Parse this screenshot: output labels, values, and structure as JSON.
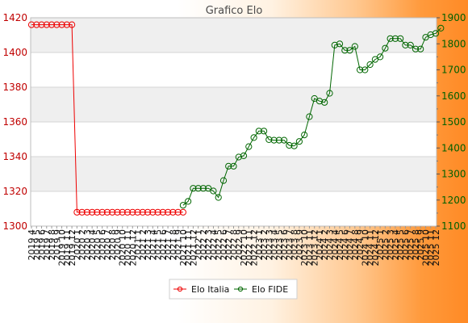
{
  "chart_data": {
    "type": "line",
    "title": "Grafico Elo",
    "legend_position": "bottom",
    "grid": true,
    "x_labels": [
      "2019 4",
      "2019 5",
      "2019 6",
      "2019 7",
      "2019 8",
      "2019 9",
      "2019 10",
      "2019 11",
      "2019 12",
      "2020 1",
      "2020 2",
      "2020 3",
      "2020 4",
      "2020 5",
      "2020 6",
      "2020 7",
      "2020 8",
      "2020 9",
      "2020 10",
      "2020 11",
      "2020 12",
      "2021 1",
      "2021 2",
      "2021 3",
      "2021 4",
      "2021 5",
      "2021 6",
      "2021 7",
      "2021 8",
      "2021 9",
      "2021 10",
      "2021 11",
      "2021 12",
      "2022 1",
      "2022 2",
      "2022 3",
      "2022 4",
      "2022 5",
      "2022 6",
      "2022 7",
      "2022 8",
      "2022 9",
      "2022 10",
      "2022 11",
      "2022 12",
      "2023 1",
      "2023 2",
      "2023 3",
      "2023 4",
      "2023 5",
      "2023 6",
      "2023 7",
      "2023 8",
      "2023 9",
      "2023 10",
      "2023 11",
      "2023 12",
      "2024 1",
      "2024 2",
      "2024 3",
      "2024 4",
      "2024 5",
      "2024 6",
      "2024 7",
      "2024 8",
      "2024 9",
      "2024 10",
      "2024 11",
      "2024 12",
      "2025 1",
      "2025 2",
      "2025 3",
      "2025 4",
      "2025 5",
      "2025 6",
      "2025 7",
      "2025 8",
      "2025 9",
      "2025 10",
      "2025 11",
      "2025 12"
    ],
    "left_axis": {
      "ylim": [
        1300,
        1420
      ],
      "ticks": [
        1300,
        1320,
        1340,
        1360,
        1380,
        1400,
        1420
      ],
      "color": "#c00000"
    },
    "right_axis": {
      "ylim": [
        1100,
        1900
      ],
      "ticks": [
        1100,
        1200,
        1300,
        1400,
        1500,
        1600,
        1700,
        1800,
        1900
      ],
      "color": "#006000"
    },
    "series": [
      {
        "name": "Elo Italia",
        "axis": "left",
        "color": "#ee0000",
        "values": [
          1416,
          1416,
          1416,
          1416,
          1416,
          1416,
          1416,
          1416,
          1416,
          1308,
          1308,
          1308,
          1308,
          1308,
          1308,
          1308,
          1308,
          1308,
          1308,
          1308,
          1308,
          1308,
          1308,
          1308,
          1308,
          1308,
          1308,
          1308,
          1308,
          1308,
          1308
        ]
      },
      {
        "name": "Elo FIDE",
        "axis": "right",
        "color": "#006600",
        "start_index": 30,
        "values": [
          1180,
          1195,
          1245,
          1245,
          1245,
          1245,
          1235,
          1210,
          1275,
          1330,
          1330,
          1365,
          1370,
          1405,
          1440,
          1465,
          1465,
          1432,
          1430,
          1430,
          1430,
          1410,
          1408,
          1425,
          1450,
          1520,
          1590,
          1580,
          1575,
          1610,
          1795,
          1800,
          1775,
          1775,
          1790,
          1700,
          1700,
          1720,
          1740,
          1750,
          1783,
          1820,
          1820,
          1820,
          1795,
          1795,
          1780,
          1780,
          1825,
          1835,
          1840,
          1860
        ]
      }
    ]
  }
}
